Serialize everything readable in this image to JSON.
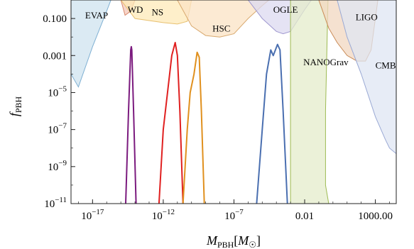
{
  "chart_data": {
    "type": "area",
    "xscale": "log",
    "yscale": "log",
    "xlim": [
      3e-19,
      30000.0
    ],
    "ylim": [
      1e-11,
      1
    ],
    "xlabel": "M_PBH[M_☉]",
    "ylabel": "f_PBH",
    "x_ticks": [
      {
        "value": 1e-17,
        "base": "10",
        "exp": "−17"
      },
      {
        "value": 1e-12,
        "base": "10",
        "exp": "−12"
      },
      {
        "value": 1e-07,
        "base": "10",
        "exp": "−7"
      },
      {
        "value": 0.01,
        "label": "0.01"
      },
      {
        "value": 1000,
        "label": "1000.00"
      }
    ],
    "y_ticks": [
      {
        "value": 0.1,
        "label": "0.100"
      },
      {
        "value": 0.001,
        "label": "0.001"
      },
      {
        "value": 1e-05,
        "base": "10",
        "exp": "−5"
      },
      {
        "value": 1e-07,
        "base": "10",
        "exp": "−7"
      },
      {
        "value": 1e-09,
        "base": "10",
        "exp": "−9"
      },
      {
        "value": 1e-11,
        "base": "10",
        "exp": "−11"
      }
    ],
    "constraints": [
      {
        "label": "EVAP",
        "fill": "#cfe3ef",
        "stroke": "#7fb0d3",
        "label_at": [
          3e-18,
          0.1
        ],
        "boundary": [
          [
            3e-19,
            1
          ],
          [
            3e-19,
            0.0001
          ],
          [
            1e-18,
            2e-05
          ],
          [
            1e-17,
            0.003
          ],
          [
            1e-16,
            0.25
          ],
          [
            2e-16,
            1
          ]
        ]
      },
      {
        "label": "WD",
        "fill": "#f4c7b8",
        "stroke": "#d98a6e",
        "label_at": [
          3e-15,
          0.2
        ],
        "boundary": [
          [
            1e-15,
            1
          ],
          [
            2e-15,
            0.15
          ],
          [
            5e-15,
            0.25
          ],
          [
            1e-14,
            1
          ]
        ]
      },
      {
        "label": "NS",
        "fill": "#fde9b8",
        "stroke": "#e8c070",
        "label_at": [
          1.5e-13,
          0.15
        ],
        "boundary": [
          [
            1e-15,
            1
          ],
          [
            1e-14,
            0.1
          ],
          [
            1e-12,
            0.06
          ],
          [
            1e-11,
            0.05
          ],
          [
            5e-11,
            0.07
          ],
          [
            1e-10,
            1
          ]
        ]
      },
      {
        "label": "HSC",
        "fill": "#fbe3c4",
        "stroke": "#d9aa70",
        "label_at": [
          3e-09,
          0.02
        ],
        "boundary": [
          [
            1e-11,
            1
          ],
          [
            1e-10,
            0.04
          ],
          [
            1e-09,
            0.012
          ],
          [
            1e-08,
            0.01
          ],
          [
            1e-07,
            0.015
          ],
          [
            1e-06,
            0.1
          ],
          [
            1e-05,
            0.5
          ],
          [
            3e-05,
            1
          ]
        ]
      },
      {
        "label": "OGLE",
        "fill": "#dcdaf0",
        "stroke": "#9f98cf",
        "label_at": [
          6e-05,
          0.2
        ],
        "boundary": [
          [
            1e-06,
            1
          ],
          [
            1e-05,
            0.1
          ],
          [
            0.0001,
            0.02
          ],
          [
            0.0003,
            0.015
          ],
          [
            0.001,
            0.02
          ],
          [
            0.01,
            0.3
          ],
          [
            0.03,
            1
          ]
        ]
      },
      {
        "label": "NANOGrav",
        "fill": "#e4eccb",
        "stroke": "#9dba52",
        "label_at": [
          0.008,
          0.0003
        ],
        "boundary": [
          [
            0.001,
            1
          ],
          [
            0.001,
            1e-11
          ],
          [
            0.5,
            1e-11
          ],
          [
            0.3,
            1e-10
          ],
          [
            0.3,
            1e-06
          ],
          [
            0.45,
            1
          ]
        ]
      },
      {
        "label": "LIGO",
        "fill": "#f1d7c0",
        "stroke": "#c98a55",
        "label_at": [
          40,
          0.08
        ],
        "boundary": [
          [
            0.1,
            1
          ],
          [
            0.5,
            0.03
          ],
          [
            2,
            0.005
          ],
          [
            10,
            0.001
          ],
          [
            50,
            0.0005
          ],
          [
            200,
            0.0005
          ],
          [
            500,
            0.002
          ],
          [
            1000,
            0.1
          ],
          [
            1500,
            1
          ]
        ]
      },
      {
        "label": "CMB",
        "fill": "#dfe5f3",
        "stroke": "#9aa9d4",
        "label_at": [
          1000,
          0.0002
        ],
        "boundary": [
          [
            2,
            1
          ],
          [
            10,
            0.01
          ],
          [
            100,
            0.0001
          ],
          [
            1000,
            5e-07
          ],
          [
            5000,
            3e-08
          ],
          [
            10000.0,
            1e-08
          ],
          [
            30000.0,
            5e-09
          ],
          [
            30000.0,
            1
          ]
        ]
      }
    ],
    "peaks": [
      {
        "color": "#7b1a7e",
        "points": [
          [
            2.2e-15,
            1e-11
          ],
          [
            3.5e-15,
            1e-06
          ],
          [
            5e-15,
            0.002
          ],
          [
            5.5e-15,
            0.003
          ],
          [
            6e-15,
            0.002
          ],
          [
            8e-15,
            1e-06
          ],
          [
            1.2e-14,
            1e-11
          ]
        ]
      },
      {
        "color": "#e02020",
        "points": [
          [
            5e-13,
            1e-11
          ],
          [
            1e-12,
            1e-07
          ],
          [
            2e-12,
            1e-05
          ],
          [
            4e-12,
            0.001
          ],
          [
            7e-12,
            0.005
          ],
          [
            1e-11,
            0.001
          ],
          [
            1.5e-11,
            1e-06
          ],
          [
            2.5e-11,
            1e-11
          ]
        ]
      },
      {
        "color": "#e0901e",
        "points": [
          [
            2.5e-11,
            1e-11
          ],
          [
            5e-11,
            1e-07
          ],
          [
            8e-11,
            1e-05
          ],
          [
            1.5e-10,
            0.0001
          ],
          [
            2.5e-10,
            0.0015
          ],
          [
            3.5e-10,
            0.0008
          ],
          [
            5e-10,
            1e-06
          ],
          [
            8e-10,
            1e-11
          ]
        ]
      },
      {
        "color": "#4a6fb0",
        "points": [
          [
            4e-06,
            1e-11
          ],
          [
            1e-05,
            1e-07
          ],
          [
            2e-05,
            0.0001
          ],
          [
            4e-05,
            0.002
          ],
          [
            6e-05,
            0.001
          ],
          [
            0.00012,
            0.004
          ],
          [
            0.00018,
            0.002
          ],
          [
            0.0003,
            1e-06
          ],
          [
            0.0006,
            1e-11
          ]
        ]
      }
    ]
  }
}
